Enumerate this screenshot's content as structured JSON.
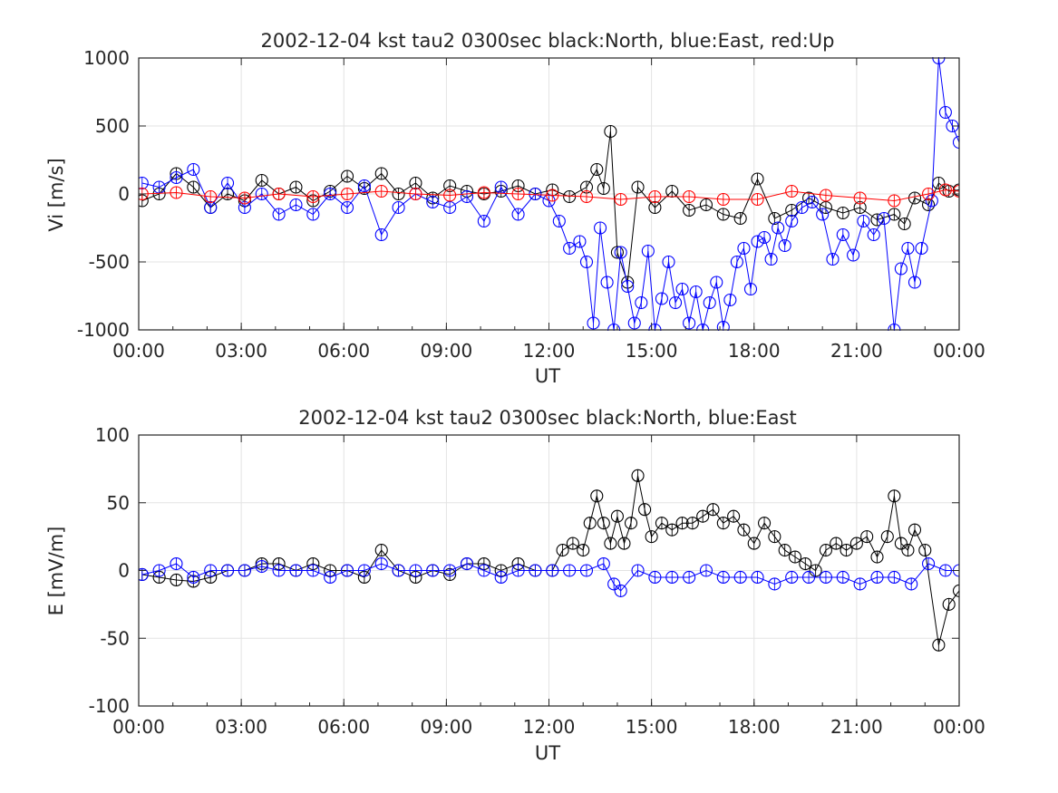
{
  "panels": [
    {
      "title": "2002-12-04 kst tau2 0300sec black:North, blue:East, red:Up",
      "xlabel": "UT",
      "ylabel": "Vi [m/s]",
      "xticks": [
        "00:00",
        "03:00",
        "06:00",
        "09:00",
        "12:00",
        "15:00",
        "18:00",
        "21:00",
        "00:00"
      ],
      "yticks": [
        "1000",
        "500",
        "0",
        "-500",
        "-1000"
      ]
    },
    {
      "title": "2002-12-04 kst tau2 0300sec black:North, blue:East",
      "xlabel": "UT",
      "ylabel": "E [mV/m]",
      "xticks": [
        "00:00",
        "03:00",
        "06:00",
        "09:00",
        "12:00",
        "15:00",
        "18:00",
        "21:00",
        "00:00"
      ],
      "yticks": [
        "100",
        "50",
        "0",
        "-50",
        "-100"
      ]
    }
  ],
  "chart_data": [
    {
      "type": "line",
      "title": "2002-12-04 kst tau2 0300sec black:North, blue:East, red:Up",
      "xlabel": "UT",
      "ylabel": "Vi [m/s]",
      "x_unit": "hours UT",
      "xlim": [
        0,
        24
      ],
      "ylim": [
        -1000,
        1000
      ],
      "grid": true,
      "marker": "circle",
      "colors": {
        "North": "#000000",
        "East": "#0000ff",
        "Up": "#ff0000"
      },
      "series": [
        {
          "name": "North",
          "x": [
            0.1,
            0.6,
            1.1,
            1.6,
            2.1,
            2.6,
            3.1,
            3.6,
            4.1,
            4.6,
            5.1,
            5.6,
            6.1,
            6.6,
            7.1,
            7.6,
            8.1,
            8.6,
            9.1,
            9.6,
            10.1,
            10.6,
            11.1,
            11.6,
            12.1,
            12.6,
            13.1,
            13.4,
            13.6,
            13.8,
            14.0,
            14.3,
            14.6,
            15.1,
            15.6,
            16.1,
            16.6,
            17.1,
            17.6,
            18.1,
            18.6,
            19.1,
            19.6,
            20.1,
            20.6,
            21.1,
            21.6,
            22.1,
            22.4,
            22.7,
            23.1,
            23.4,
            23.7,
            24.0
          ],
          "y": [
            -50,
            0,
            150,
            50,
            -100,
            0,
            -50,
            100,
            0,
            50,
            -50,
            20,
            130,
            40,
            150,
            0,
            80,
            -30,
            60,
            20,
            0,
            20,
            60,
            0,
            30,
            -20,
            50,
            180,
            40,
            460,
            -430,
            -650,
            50,
            -100,
            20,
            -120,
            -80,
            -150,
            -180,
            110,
            -180,
            -120,
            -30,
            -100,
            -140,
            -100,
            -190,
            -150,
            -220,
            -30,
            -80,
            80,
            20,
            30
          ]
        },
        {
          "name": "East",
          "x": [
            0.1,
            0.6,
            1.1,
            1.6,
            2.1,
            2.6,
            3.1,
            3.6,
            4.1,
            4.6,
            5.1,
            5.6,
            6.1,
            6.6,
            7.1,
            7.6,
            8.1,
            8.6,
            9.1,
            9.6,
            10.1,
            10.6,
            11.1,
            11.6,
            12.0,
            12.3,
            12.6,
            12.9,
            13.1,
            13.3,
            13.5,
            13.7,
            13.9,
            14.1,
            14.3,
            14.5,
            14.7,
            14.9,
            15.1,
            15.3,
            15.5,
            15.7,
            15.9,
            16.1,
            16.3,
            16.5,
            16.7,
            16.9,
            17.1,
            17.3,
            17.5,
            17.7,
            17.9,
            18.1,
            18.3,
            18.5,
            18.7,
            18.9,
            19.1,
            19.4,
            19.7,
            20.0,
            20.3,
            20.6,
            20.9,
            21.2,
            21.5,
            21.8,
            22.1,
            22.3,
            22.5,
            22.7,
            22.9,
            23.2,
            23.4,
            23.6,
            23.8,
            24.0
          ],
          "y": [
            80,
            50,
            120,
            180,
            -100,
            80,
            -100,
            0,
            -150,
            -80,
            -150,
            0,
            -100,
            60,
            -300,
            -100,
            0,
            -60,
            -100,
            -20,
            -200,
            50,
            -150,
            0,
            -50,
            -200,
            -400,
            -350,
            -500,
            -950,
            -250,
            -650,
            -1000,
            -430,
            -680,
            -950,
            -800,
            -420,
            -1000,
            -770,
            -500,
            -800,
            -700,
            -950,
            -720,
            -1000,
            -800,
            -650,
            -980,
            -780,
            -500,
            -400,
            -700,
            -350,
            -320,
            -480,
            -250,
            -380,
            -200,
            -100,
            -60,
            -150,
            -480,
            -300,
            -450,
            -200,
            -300,
            -180,
            -1000,
            -550,
            -400,
            -650,
            -400,
            -50,
            1000,
            600,
            500,
            380
          ]
        },
        {
          "name": "Up",
          "x": [
            0.1,
            1.1,
            2.1,
            3.1,
            4.1,
            5.1,
            6.1,
            7.1,
            8.1,
            9.1,
            10.1,
            11.1,
            12.1,
            13.1,
            14.1,
            15.1,
            16.1,
            17.1,
            18.1,
            19.1,
            20.1,
            21.1,
            22.1,
            23.1,
            23.6,
            24.0
          ],
          "y": [
            0,
            10,
            -20,
            -30,
            0,
            -20,
            0,
            20,
            0,
            -10,
            10,
            0,
            -10,
            -20,
            -40,
            -20,
            -20,
            -40,
            -40,
            20,
            -10,
            -30,
            -50,
            0,
            30,
            20
          ]
        }
      ]
    },
    {
      "type": "line",
      "title": "2002-12-04 kst tau2 0300sec black:North, blue:East",
      "xlabel": "UT",
      "ylabel": "E [mV/m]",
      "x_unit": "hours UT",
      "xlim": [
        0,
        24
      ],
      "ylim": [
        -100,
        100
      ],
      "grid": true,
      "marker": "circle",
      "colors": {
        "North": "#000000",
        "East": "#0000ff"
      },
      "series": [
        {
          "name": "North",
          "x": [
            0.1,
            0.6,
            1.1,
            1.6,
            2.1,
            2.6,
            3.1,
            3.6,
            4.1,
            4.6,
            5.1,
            5.6,
            6.1,
            6.6,
            7.1,
            7.6,
            8.1,
            8.6,
            9.1,
            9.6,
            10.1,
            10.6,
            11.1,
            11.6,
            12.1,
            12.4,
            12.7,
            13.0,
            13.2,
            13.4,
            13.6,
            13.8,
            14.0,
            14.2,
            14.4,
            14.6,
            14.8,
            15.0,
            15.3,
            15.6,
            15.9,
            16.2,
            16.5,
            16.8,
            17.1,
            17.4,
            17.7,
            18.0,
            18.3,
            18.6,
            18.9,
            19.2,
            19.5,
            19.8,
            20.1,
            20.4,
            20.7,
            21.0,
            21.3,
            21.6,
            21.9,
            22.1,
            22.3,
            22.5,
            22.7,
            23.0,
            23.4,
            23.7,
            24.0
          ],
          "y": [
            -3,
            -5,
            -7,
            -8,
            -5,
            0,
            0,
            5,
            5,
            0,
            5,
            0,
            0,
            -5,
            15,
            0,
            -5,
            0,
            -3,
            5,
            5,
            0,
            5,
            0,
            0,
            15,
            20,
            15,
            35,
            55,
            35,
            20,
            40,
            20,
            35,
            70,
            45,
            25,
            35,
            30,
            35,
            35,
            40,
            45,
            35,
            40,
            30,
            20,
            35,
            25,
            15,
            10,
            5,
            0,
            15,
            20,
            15,
            20,
            25,
            10,
            25,
            55,
            20,
            15,
            30,
            15,
            -55,
            -25,
            -15
          ]
        },
        {
          "name": "East",
          "x": [
            0.1,
            0.6,
            1.1,
            1.6,
            2.1,
            2.6,
            3.1,
            3.6,
            4.1,
            4.6,
            5.1,
            5.6,
            6.1,
            6.6,
            7.1,
            7.6,
            8.1,
            8.6,
            9.1,
            9.6,
            10.1,
            10.6,
            11.1,
            11.6,
            12.1,
            12.6,
            13.1,
            13.6,
            13.9,
            14.1,
            14.6,
            15.1,
            15.6,
            16.1,
            16.6,
            17.1,
            17.6,
            18.1,
            18.6,
            19.1,
            19.6,
            20.1,
            20.6,
            21.1,
            21.6,
            22.1,
            22.6,
            23.1,
            23.6,
            24.0
          ],
          "y": [
            -3,
            0,
            5,
            -5,
            0,
            0,
            0,
            3,
            0,
            0,
            0,
            -5,
            0,
            0,
            5,
            0,
            0,
            0,
            0,
            5,
            0,
            -5,
            0,
            0,
            0,
            0,
            0,
            5,
            -10,
            -15,
            0,
            -5,
            -5,
            -5,
            0,
            -5,
            -5,
            -5,
            -10,
            -5,
            -5,
            -5,
            -5,
            -10,
            -5,
            -5,
            -10,
            5,
            0,
            0
          ]
        }
      ]
    }
  ]
}
